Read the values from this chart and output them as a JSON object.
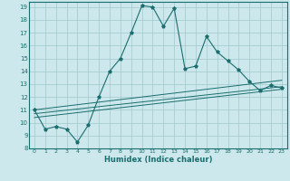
{
  "xlabel": "Humidex (Indice chaleur)",
  "xlim": [
    -0.5,
    23.5
  ],
  "ylim": [
    8,
    19.4
  ],
  "yticks": [
    8,
    9,
    10,
    11,
    12,
    13,
    14,
    15,
    16,
    17,
    18,
    19
  ],
  "xticks": [
    0,
    1,
    2,
    3,
    4,
    5,
    6,
    7,
    8,
    9,
    10,
    11,
    12,
    13,
    14,
    15,
    16,
    17,
    18,
    19,
    20,
    21,
    22,
    23
  ],
  "bg_color": "#cce8ec",
  "line_color": "#1a6e6e",
  "grid_color": "#a0c8cc",
  "series1_x": [
    0,
    1,
    2,
    3,
    4,
    5,
    6,
    7,
    8,
    9,
    10,
    11,
    12,
    13,
    14,
    15,
    16,
    17,
    18,
    19,
    20,
    21,
    22,
    23
  ],
  "series1_y": [
    11.0,
    9.5,
    9.7,
    9.5,
    8.5,
    9.8,
    12.0,
    14.0,
    15.0,
    17.0,
    19.1,
    19.0,
    17.5,
    18.9,
    14.2,
    14.4,
    16.7,
    15.5,
    14.8,
    14.1,
    13.2,
    12.5,
    12.9,
    12.7
  ],
  "series2_x": [
    0,
    23
  ],
  "series2_y": [
    11.0,
    13.3
  ],
  "series3_x": [
    0,
    23
  ],
  "series3_y": [
    10.7,
    12.8
  ],
  "series4_x": [
    0,
    23
  ],
  "series4_y": [
    10.4,
    12.6
  ]
}
